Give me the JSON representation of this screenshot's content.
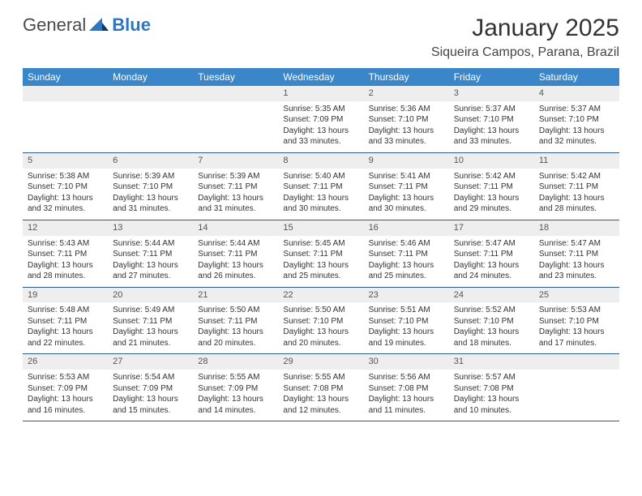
{
  "logo": {
    "general": "General",
    "blue": "Blue"
  },
  "title": "January 2025",
  "location": "Siqueira Campos, Parana, Brazil",
  "colors": {
    "header_bg": "#3a86c8",
    "header_fg": "#ffffff",
    "daynum_bg": "#eeeeee",
    "rule": "#2d5a8a",
    "brand_blue": "#2d77c2"
  },
  "day_headers": [
    "Sunday",
    "Monday",
    "Tuesday",
    "Wednesday",
    "Thursday",
    "Friday",
    "Saturday"
  ],
  "weeks": [
    {
      "nums": [
        "",
        "",
        "",
        "1",
        "2",
        "3",
        "4"
      ],
      "cells": [
        null,
        null,
        null,
        {
          "sr": "Sunrise: 5:35 AM",
          "ss": "Sunset: 7:09 PM",
          "d1": "Daylight: 13 hours",
          "d2": "and 33 minutes."
        },
        {
          "sr": "Sunrise: 5:36 AM",
          "ss": "Sunset: 7:10 PM",
          "d1": "Daylight: 13 hours",
          "d2": "and 33 minutes."
        },
        {
          "sr": "Sunrise: 5:37 AM",
          "ss": "Sunset: 7:10 PM",
          "d1": "Daylight: 13 hours",
          "d2": "and 33 minutes."
        },
        {
          "sr": "Sunrise: 5:37 AM",
          "ss": "Sunset: 7:10 PM",
          "d1": "Daylight: 13 hours",
          "d2": "and 32 minutes."
        }
      ]
    },
    {
      "nums": [
        "5",
        "6",
        "7",
        "8",
        "9",
        "10",
        "11"
      ],
      "cells": [
        {
          "sr": "Sunrise: 5:38 AM",
          "ss": "Sunset: 7:10 PM",
          "d1": "Daylight: 13 hours",
          "d2": "and 32 minutes."
        },
        {
          "sr": "Sunrise: 5:39 AM",
          "ss": "Sunset: 7:10 PM",
          "d1": "Daylight: 13 hours",
          "d2": "and 31 minutes."
        },
        {
          "sr": "Sunrise: 5:39 AM",
          "ss": "Sunset: 7:11 PM",
          "d1": "Daylight: 13 hours",
          "d2": "and 31 minutes."
        },
        {
          "sr": "Sunrise: 5:40 AM",
          "ss": "Sunset: 7:11 PM",
          "d1": "Daylight: 13 hours",
          "d2": "and 30 minutes."
        },
        {
          "sr": "Sunrise: 5:41 AM",
          "ss": "Sunset: 7:11 PM",
          "d1": "Daylight: 13 hours",
          "d2": "and 30 minutes."
        },
        {
          "sr": "Sunrise: 5:42 AM",
          "ss": "Sunset: 7:11 PM",
          "d1": "Daylight: 13 hours",
          "d2": "and 29 minutes."
        },
        {
          "sr": "Sunrise: 5:42 AM",
          "ss": "Sunset: 7:11 PM",
          "d1": "Daylight: 13 hours",
          "d2": "and 28 minutes."
        }
      ]
    },
    {
      "nums": [
        "12",
        "13",
        "14",
        "15",
        "16",
        "17",
        "18"
      ],
      "cells": [
        {
          "sr": "Sunrise: 5:43 AM",
          "ss": "Sunset: 7:11 PM",
          "d1": "Daylight: 13 hours",
          "d2": "and 28 minutes."
        },
        {
          "sr": "Sunrise: 5:44 AM",
          "ss": "Sunset: 7:11 PM",
          "d1": "Daylight: 13 hours",
          "d2": "and 27 minutes."
        },
        {
          "sr": "Sunrise: 5:44 AM",
          "ss": "Sunset: 7:11 PM",
          "d1": "Daylight: 13 hours",
          "d2": "and 26 minutes."
        },
        {
          "sr": "Sunrise: 5:45 AM",
          "ss": "Sunset: 7:11 PM",
          "d1": "Daylight: 13 hours",
          "d2": "and 25 minutes."
        },
        {
          "sr": "Sunrise: 5:46 AM",
          "ss": "Sunset: 7:11 PM",
          "d1": "Daylight: 13 hours",
          "d2": "and 25 minutes."
        },
        {
          "sr": "Sunrise: 5:47 AM",
          "ss": "Sunset: 7:11 PM",
          "d1": "Daylight: 13 hours",
          "d2": "and 24 minutes."
        },
        {
          "sr": "Sunrise: 5:47 AM",
          "ss": "Sunset: 7:11 PM",
          "d1": "Daylight: 13 hours",
          "d2": "and 23 minutes."
        }
      ]
    },
    {
      "nums": [
        "19",
        "20",
        "21",
        "22",
        "23",
        "24",
        "25"
      ],
      "cells": [
        {
          "sr": "Sunrise: 5:48 AM",
          "ss": "Sunset: 7:11 PM",
          "d1": "Daylight: 13 hours",
          "d2": "and 22 minutes."
        },
        {
          "sr": "Sunrise: 5:49 AM",
          "ss": "Sunset: 7:11 PM",
          "d1": "Daylight: 13 hours",
          "d2": "and 21 minutes."
        },
        {
          "sr": "Sunrise: 5:50 AM",
          "ss": "Sunset: 7:11 PM",
          "d1": "Daylight: 13 hours",
          "d2": "and 20 minutes."
        },
        {
          "sr": "Sunrise: 5:50 AM",
          "ss": "Sunset: 7:10 PM",
          "d1": "Daylight: 13 hours",
          "d2": "and 20 minutes."
        },
        {
          "sr": "Sunrise: 5:51 AM",
          "ss": "Sunset: 7:10 PM",
          "d1": "Daylight: 13 hours",
          "d2": "and 19 minutes."
        },
        {
          "sr": "Sunrise: 5:52 AM",
          "ss": "Sunset: 7:10 PM",
          "d1": "Daylight: 13 hours",
          "d2": "and 18 minutes."
        },
        {
          "sr": "Sunrise: 5:53 AM",
          "ss": "Sunset: 7:10 PM",
          "d1": "Daylight: 13 hours",
          "d2": "and 17 minutes."
        }
      ]
    },
    {
      "nums": [
        "26",
        "27",
        "28",
        "29",
        "30",
        "31",
        ""
      ],
      "cells": [
        {
          "sr": "Sunrise: 5:53 AM",
          "ss": "Sunset: 7:09 PM",
          "d1": "Daylight: 13 hours",
          "d2": "and 16 minutes."
        },
        {
          "sr": "Sunrise: 5:54 AM",
          "ss": "Sunset: 7:09 PM",
          "d1": "Daylight: 13 hours",
          "d2": "and 15 minutes."
        },
        {
          "sr": "Sunrise: 5:55 AM",
          "ss": "Sunset: 7:09 PM",
          "d1": "Daylight: 13 hours",
          "d2": "and 14 minutes."
        },
        {
          "sr": "Sunrise: 5:55 AM",
          "ss": "Sunset: 7:08 PM",
          "d1": "Daylight: 13 hours",
          "d2": "and 12 minutes."
        },
        {
          "sr": "Sunrise: 5:56 AM",
          "ss": "Sunset: 7:08 PM",
          "d1": "Daylight: 13 hours",
          "d2": "and 11 minutes."
        },
        {
          "sr": "Sunrise: 5:57 AM",
          "ss": "Sunset: 7:08 PM",
          "d1": "Daylight: 13 hours",
          "d2": "and 10 minutes."
        },
        null
      ]
    }
  ]
}
